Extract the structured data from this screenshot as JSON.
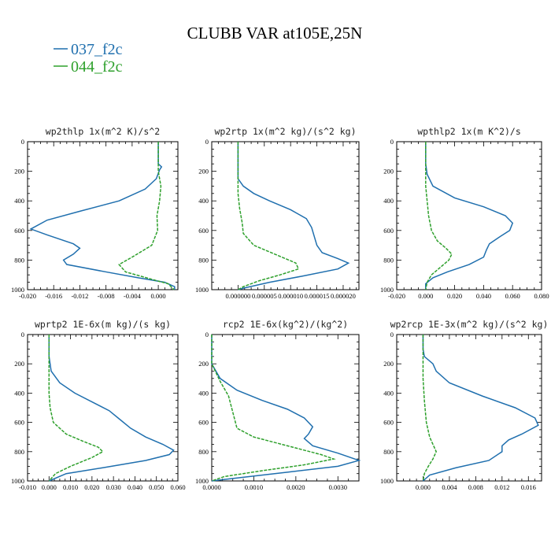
{
  "title": "CLUBB VAR at105E,25N",
  "legend": [
    {
      "label": "037_f2c",
      "color": "#1f6fae"
    },
    {
      "label": "044_f2c",
      "color": "#2ea02c"
    }
  ],
  "chart_data": [
    {
      "type": "line",
      "title": "wp2thlp  1x(m^2 K)/s^2",
      "xlim": [
        -0.02,
        0.003
      ],
      "xticks": [
        -0.02,
        -0.016,
        -0.012,
        -0.008,
        -0.004,
        0.0
      ],
      "xtick_labels": [
        "-0.020",
        "-0.016",
        "-0.012",
        "-0.008",
        "-0.004",
        "0.000"
      ],
      "ylim": [
        0,
        1000
      ],
      "yticks": [
        0,
        200,
        400,
        600,
        800,
        1000
      ],
      "y_inverted": true,
      "series": [
        {
          "name": "037_f2c",
          "color": "#1f6fae",
          "points": [
            [
              0.0,
              0
            ],
            [
              0.0,
              100
            ],
            [
              0.0,
              150
            ],
            [
              0.0005,
              170
            ],
            [
              0.0002,
              190
            ],
            [
              -0.0003,
              250
            ],
            [
              -0.002,
              320
            ],
            [
              -0.006,
              400
            ],
            [
              -0.012,
              470
            ],
            [
              -0.017,
              530
            ],
            [
              -0.0195,
              590
            ],
            [
              -0.017,
              630
            ],
            [
              -0.013,
              690
            ],
            [
              -0.012,
              720
            ],
            [
              -0.013,
              760
            ],
            [
              -0.0145,
              800
            ],
            [
              -0.014,
              830
            ],
            [
              -0.008,
              880
            ],
            [
              -0.003,
              920
            ],
            [
              0.001,
              950
            ],
            [
              0.0025,
              980
            ],
            [
              0.0025,
              1000
            ]
          ]
        },
        {
          "name": "044_f2c",
          "color": "#2ea02c",
          "points": [
            [
              0.0,
              0
            ],
            [
              0.0,
              100
            ],
            [
              0.0,
              200
            ],
            [
              0.0002,
              250
            ],
            [
              0.0004,
              300
            ],
            [
              0.0002,
              400
            ],
            [
              -0.0002,
              500
            ],
            [
              -0.0001,
              600
            ],
            [
              -0.001,
              700
            ],
            [
              -0.004,
              780
            ],
            [
              -0.006,
              830
            ],
            [
              -0.005,
              880
            ],
            [
              -0.001,
              930
            ],
            [
              0.0015,
              960
            ],
            [
              0.0022,
              990
            ],
            [
              0.0024,
              1000
            ]
          ]
        }
      ]
    },
    {
      "type": "line",
      "title": "wp2rtp  1x(m^2 kg)/(s^2 kg)",
      "xlim": [
        -5e-06,
        2.3e-05
      ],
      "xticks": [
        0.0,
        5e-06,
        1e-05,
        1.5e-05,
        2e-05
      ],
      "xtick_labels": [
        "0.000000",
        "0.000005",
        "0.000010",
        "0.000015",
        "0.000020"
      ],
      "ylim": [
        0,
        1000
      ],
      "yticks": [
        0,
        200,
        400,
        600,
        800,
        1000
      ],
      "y_inverted": true,
      "series": [
        {
          "name": "037_f2c",
          "color": "#1f6fae",
          "points": [
            [
              0.0,
              0
            ],
            [
              0.0,
              150
            ],
            [
              0.0,
              250
            ],
            [
              1e-06,
              300
            ],
            [
              3e-06,
              350
            ],
            [
              6e-06,
              400
            ],
            [
              1e-05,
              460
            ],
            [
              1.3e-05,
              520
            ],
            [
              1.4e-05,
              580
            ],
            [
              1.45e-05,
              640
            ],
            [
              1.5e-05,
              700
            ],
            [
              1.6e-05,
              750
            ],
            [
              1.9e-05,
              790
            ],
            [
              2.1e-05,
              820
            ],
            [
              1.9e-05,
              860
            ],
            [
              1.2e-05,
              910
            ],
            [
              6e-06,
              950
            ],
            [
              1e-06,
              990
            ],
            [
              0.0,
              1000
            ]
          ]
        },
        {
          "name": "044_f2c",
          "color": "#2ea02c",
          "points": [
            [
              0.0,
              0
            ],
            [
              0.0,
              150
            ],
            [
              0.0,
              250
            ],
            [
              0.0,
              350
            ],
            [
              3e-07,
              450
            ],
            [
              8e-07,
              550
            ],
            [
              1e-06,
              620
            ],
            [
              3e-06,
              700
            ],
            [
              7e-06,
              760
            ],
            [
              1.1e-05,
              820
            ],
            [
              1.15e-05,
              860
            ],
            [
              8e-06,
              900
            ],
            [
              4e-06,
              940
            ],
            [
              1e-06,
              980
            ],
            [
              0.0,
              1000
            ]
          ]
        }
      ]
    },
    {
      "type": "line",
      "title": "wpthlp2  1x(m K^2)/s",
      "xlim": [
        -0.02,
        0.08
      ],
      "xticks": [
        -0.02,
        0.0,
        0.02,
        0.04,
        0.06,
        0.08
      ],
      "xtick_labels": [
        "-0.020",
        "0.000",
        "0.020",
        "0.040",
        "0.060",
        "0.080"
      ],
      "ylim": [
        0,
        1000
      ],
      "yticks": [
        0,
        200,
        400,
        600,
        800,
        1000
      ],
      "y_inverted": true,
      "series": [
        {
          "name": "037_f2c",
          "color": "#1f6fae",
          "points": [
            [
              0.0,
              0
            ],
            [
              0.0,
              150
            ],
            [
              0.001,
              220
            ],
            [
              0.005,
              300
            ],
            [
              0.02,
              380
            ],
            [
              0.04,
              440
            ],
            [
              0.055,
              500
            ],
            [
              0.06,
              550
            ],
            [
              0.058,
              600
            ],
            [
              0.05,
              650
            ],
            [
              0.044,
              690
            ],
            [
              0.042,
              730
            ],
            [
              0.04,
              780
            ],
            [
              0.03,
              830
            ],
            [
              0.015,
              880
            ],
            [
              0.005,
              920
            ],
            [
              0.0,
              960
            ],
            [
              0.0,
              1000
            ]
          ]
        },
        {
          "name": "044_f2c",
          "color": "#2ea02c",
          "points": [
            [
              0.0,
              0
            ],
            [
              0.0,
              150
            ],
            [
              0.0,
              300
            ],
            [
              0.001,
              400
            ],
            [
              0.002,
              500
            ],
            [
              0.004,
              600
            ],
            [
              0.008,
              670
            ],
            [
              0.014,
              720
            ],
            [
              0.018,
              760
            ],
            [
              0.016,
              800
            ],
            [
              0.01,
              850
            ],
            [
              0.004,
              900
            ],
            [
              0.001,
              950
            ],
            [
              0.0,
              1000
            ]
          ]
        }
      ]
    },
    {
      "type": "line",
      "title": "wprtp2  1E-6x(m kg)/(s kg)",
      "xlim": [
        -0.01,
        0.06
      ],
      "xticks": [
        -0.01,
        0.0,
        0.01,
        0.02,
        0.03,
        0.04,
        0.05,
        0.06
      ],
      "xtick_labels": [
        "-0.010",
        "0.000",
        "0.010",
        "0.020",
        "0.030",
        "0.040",
        "0.050",
        "0.060"
      ],
      "ylim": [
        0,
        1000
      ],
      "yticks": [
        0,
        200,
        400,
        600,
        800,
        1000
      ],
      "y_inverted": true,
      "series": [
        {
          "name": "037_f2c",
          "color": "#1f6fae",
          "points": [
            [
              0.0,
              0
            ],
            [
              0.0,
              150
            ],
            [
              0.001,
              250
            ],
            [
              0.005,
              330
            ],
            [
              0.012,
              400
            ],
            [
              0.02,
              460
            ],
            [
              0.028,
              520
            ],
            [
              0.033,
              580
            ],
            [
              0.038,
              640
            ],
            [
              0.045,
              700
            ],
            [
              0.053,
              750
            ],
            [
              0.058,
              790
            ],
            [
              0.056,
              820
            ],
            [
              0.045,
              860
            ],
            [
              0.025,
              910
            ],
            [
              0.008,
              950
            ],
            [
              0.0,
              1000
            ]
          ]
        },
        {
          "name": "044_f2c",
          "color": "#2ea02c",
          "points": [
            [
              0.0,
              0
            ],
            [
              0.0,
              200
            ],
            [
              0.0,
              400
            ],
            [
              0.0005,
              500
            ],
            [
              0.002,
              600
            ],
            [
              0.008,
              680
            ],
            [
              0.016,
              730
            ],
            [
              0.023,
              770
            ],
            [
              0.025,
              800
            ],
            [
              0.02,
              840
            ],
            [
              0.01,
              900
            ],
            [
              0.003,
              950
            ],
            [
              0.0,
              1000
            ]
          ]
        }
      ]
    },
    {
      "type": "line",
      "title": "rcp2  1E-6x(kg^2)/(kg^2)",
      "xlim": [
        0.0,
        0.0035
      ],
      "xticks": [
        0.0,
        0.001,
        0.002,
        0.003
      ],
      "xtick_labels": [
        "0.0000",
        "0.0010",
        "0.0020",
        "0.0030"
      ],
      "ylim": [
        0,
        1000
      ],
      "yticks": [
        0,
        200,
        400,
        600,
        800,
        1000
      ],
      "y_inverted": true,
      "series": [
        {
          "name": "037_f2c",
          "color": "#1f6fae",
          "points": [
            [
              0.0,
              0
            ],
            [
              0.0,
              200
            ],
            [
              0.0002,
              300
            ],
            [
              0.0006,
              380
            ],
            [
              0.0012,
              450
            ],
            [
              0.0018,
              510
            ],
            [
              0.0022,
              570
            ],
            [
              0.0024,
              630
            ],
            [
              0.0023,
              680
            ],
            [
              0.0022,
              710
            ],
            [
              0.0024,
              760
            ],
            [
              0.003,
              810
            ],
            [
              0.0035,
              860
            ],
            [
              0.003,
              900
            ],
            [
              0.0018,
              940
            ],
            [
              0.0006,
              980
            ],
            [
              0.0,
              1000
            ]
          ]
        },
        {
          "name": "044_f2c",
          "color": "#2ea02c",
          "points": [
            [
              0.0,
              0
            ],
            [
              0.0,
              200
            ],
            [
              0.0002,
              320
            ],
            [
              0.0004,
              420
            ],
            [
              0.0005,
              530
            ],
            [
              0.0006,
              640
            ],
            [
              0.001,
              700
            ],
            [
              0.0018,
              760
            ],
            [
              0.0026,
              820
            ],
            [
              0.0029,
              850
            ],
            [
              0.0022,
              890
            ],
            [
              0.0012,
              930
            ],
            [
              0.0003,
              970
            ],
            [
              0.0,
              1000
            ]
          ]
        }
      ]
    },
    {
      "type": "line",
      "title": "wp2rcp  1E-3x(m^2 kg)/(s^2 kg)",
      "xlim": [
        -0.004,
        0.018
      ],
      "xticks": [
        0.0,
        0.004,
        0.008,
        0.012,
        0.016
      ],
      "xtick_labels": [
        "0.000",
        "0.004",
        "0.008",
        "0.012",
        "0.016"
      ],
      "ylim": [
        0,
        1000
      ],
      "yticks": [
        0,
        200,
        400,
        600,
        800,
        1000
      ],
      "y_inverted": true,
      "series": [
        {
          "name": "037_f2c",
          "color": "#1f6fae",
          "points": [
            [
              0.0,
              0
            ],
            [
              0.0,
              100
            ],
            [
              0.0002,
              150
            ],
            [
              0.0015,
              200
            ],
            [
              0.002,
              250
            ],
            [
              0.004,
              330
            ],
            [
              0.009,
              420
            ],
            [
              0.014,
              500
            ],
            [
              0.017,
              570
            ],
            [
              0.0175,
              620
            ],
            [
              0.015,
              680
            ],
            [
              0.013,
              720
            ],
            [
              0.012,
              760
            ],
            [
              0.012,
              800
            ],
            [
              0.01,
              860
            ],
            [
              0.005,
              910
            ],
            [
              0.001,
              960
            ],
            [
              0.0,
              1000
            ]
          ]
        },
        {
          "name": "044_f2c",
          "color": "#2ea02c",
          "points": [
            [
              0.0,
              0
            ],
            [
              0.0,
              150
            ],
            [
              0.0,
              300
            ],
            [
              0.0002,
              450
            ],
            [
              0.0005,
              600
            ],
            [
              0.001,
              700
            ],
            [
              0.0016,
              760
            ],
            [
              0.002,
              800
            ],
            [
              0.0015,
              850
            ],
            [
              0.0008,
              900
            ],
            [
              0.0002,
              950
            ],
            [
              0.0,
              1000
            ]
          ]
        }
      ]
    }
  ]
}
